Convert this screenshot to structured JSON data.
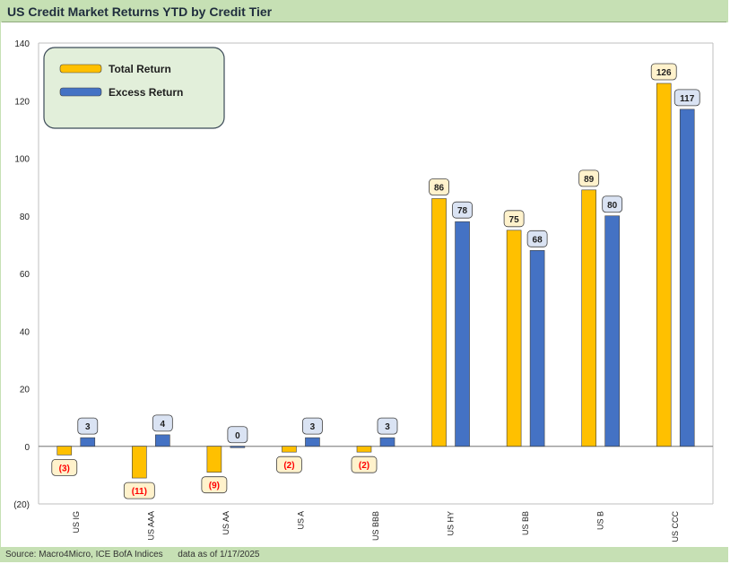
{
  "title": "US Credit Market Returns YTD by Credit Tier",
  "footer": {
    "source": "Source: Macro4Micro, ICE BofA Indices",
    "date_note": "data as of 1/17/2025"
  },
  "colors": {
    "background": "#c6e0b4",
    "total_return": "#ffc000",
    "excess_return": "#4472c4",
    "total_label_fill": "#fff2cc",
    "excess_label_fill": "#dae3f3",
    "negative_label_text": "#ff0000"
  },
  "chart_data": {
    "type": "bar",
    "title": "US Credit Market Returns YTD by Credit Tier",
    "categories": [
      "US IG",
      "US AAA",
      "US AA",
      "US A",
      "US BBB",
      "US HY",
      "US BB",
      "US B",
      "US CCC"
    ],
    "series": [
      {
        "name": "Total Return",
        "values": [
          -3,
          -11,
          -9,
          -2,
          -2,
          86,
          75,
          89,
          126
        ]
      },
      {
        "name": "Excess Return",
        "values": [
          3,
          4,
          0,
          3,
          3,
          78,
          68,
          80,
          117
        ]
      }
    ],
    "data_labels": {
      "Total Return": [
        "(3)",
        "(11)",
        "(9)",
        "(2)",
        "(2)",
        "86",
        "75",
        "89",
        "126"
      ],
      "Excess Return": [
        "3",
        "4",
        "0",
        "3",
        "3",
        "78",
        "68",
        "80",
        "117"
      ]
    },
    "ylim": [
      -20,
      140
    ],
    "yticks": [
      -20,
      0,
      20,
      40,
      60,
      80,
      100,
      120,
      140
    ],
    "ytick_labels": [
      "(20)",
      "0",
      "20",
      "40",
      "60",
      "80",
      "100",
      "120",
      "140"
    ],
    "xlabel": "",
    "ylabel": "",
    "grid": false,
    "legend": "top-left"
  }
}
